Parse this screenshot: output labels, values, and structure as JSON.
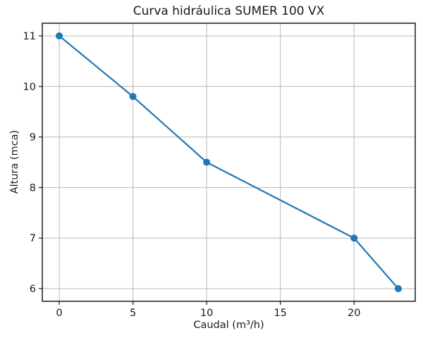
{
  "chart_data": {
    "type": "line",
    "title": "Curva hidráulica SUMER 100 VX",
    "xlabel": "Caudal (m³/h)",
    "ylabel": "Altura (mca)",
    "x": [
      0,
      5,
      10,
      20,
      23
    ],
    "y": [
      11,
      9.8,
      8.5,
      7,
      6
    ],
    "series_name": "Curva hidráulica",
    "xticks": [
      0,
      5,
      10,
      15,
      20
    ],
    "yticks": [
      6,
      7,
      8,
      9,
      10,
      11
    ],
    "xlim": [
      -1.15,
      24.15
    ],
    "ylim": [
      5.75,
      11.25
    ],
    "grid": true,
    "legend": "none",
    "marker": "o",
    "colors": {
      "line": "#1f77b4",
      "marker": "#1f77b4",
      "grid": "#b8b8b8",
      "spine": "#1a1a1a",
      "text": "#1a1a1a",
      "background": "#ffffff"
    }
  }
}
